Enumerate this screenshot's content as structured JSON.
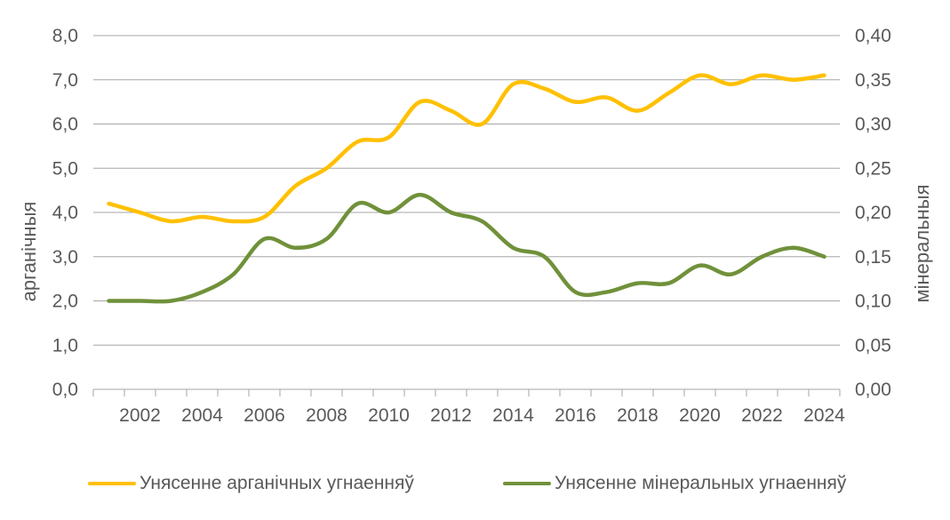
{
  "chart_data": {
    "type": "line",
    "x": [
      2001,
      2002,
      2003,
      2004,
      2005,
      2006,
      2007,
      2008,
      2009,
      2010,
      2011,
      2012,
      2013,
      2014,
      2015,
      2016,
      2017,
      2018,
      2019,
      2020,
      2021,
      2022,
      2023,
      2024
    ],
    "x_tick_labels": [
      "2002",
      "2004",
      "2006",
      "2008",
      "2010",
      "2012",
      "2014",
      "2016",
      "2018",
      "2020",
      "2022",
      "2024"
    ],
    "series": [
      {
        "name": "Унясенне арганічных угнаенняў",
        "axis": "left",
        "color": "#FFC000",
        "values": [
          4.2,
          4.0,
          3.8,
          3.9,
          3.8,
          3.9,
          4.6,
          5.0,
          5.6,
          5.7,
          6.5,
          6.3,
          6.0,
          6.9,
          6.8,
          6.5,
          6.6,
          6.3,
          6.7,
          7.1,
          6.9,
          7.1,
          7.0,
          7.1
        ]
      },
      {
        "name": "Унясенне мінеральных угнаенняў",
        "axis": "right",
        "color": "#70913A",
        "values": [
          0.1,
          0.1,
          0.1,
          0.11,
          0.13,
          0.17,
          0.16,
          0.17,
          0.21,
          0.2,
          0.22,
          0.2,
          0.19,
          0.16,
          0.15,
          0.11,
          0.11,
          0.12,
          0.12,
          0.14,
          0.13,
          0.15,
          0.16,
          0.15
        ]
      }
    ],
    "y_left": {
      "label": "арганічныя",
      "ylim": [
        0,
        8
      ],
      "tick_labels": [
        "0,0",
        "1,0",
        "2,0",
        "3,0",
        "4,0",
        "5,0",
        "6,0",
        "7,0",
        "8,0"
      ]
    },
    "y_right": {
      "label": "мінеральныя",
      "ylim": [
        0,
        0.4
      ],
      "tick_labels": [
        "0,00",
        "0,05",
        "0,10",
        "0,15",
        "0,20",
        "0,25",
        "0,30",
        "0,35",
        "0,40"
      ]
    },
    "grid": true,
    "legend_position": "bottom",
    "gridline_color": "#A6A6A6",
    "text_color": "#595959"
  }
}
